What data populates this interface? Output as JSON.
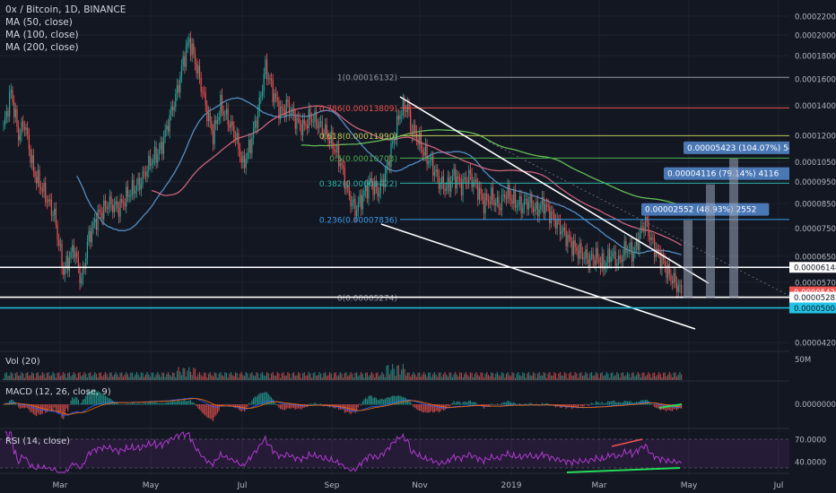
{
  "header": {
    "symbol_line": "0x / Bitcoin, 1D, BINANCE",
    "indicators": [
      "MA (50, close)",
      "MA (100, close)",
      "MA (200, close)"
    ]
  },
  "panes": {
    "volume_label": "Vol (20)",
    "macd_label": "MACD (12, 26, close, 9)",
    "rsi_label": "RSI (14, close)"
  },
  "colors": {
    "background": "#131722",
    "up": "#26a69a",
    "down": "#ef5350",
    "ma50": "#5b9bd5",
    "ma100": "#e06b85",
    "ma200": "#6fcf5b",
    "rsi": "#b03ad0",
    "fib_colors": [
      "#9598a1",
      "#ef5350",
      "#bfcc58",
      "#4caf50",
      "#2bb5a8",
      "#3d9be9",
      "#9598a1"
    ]
  },
  "chart_data": {
    "type": "candlestick",
    "title": "0x / Bitcoin, 1D, BINANCE",
    "x_ticks": [
      "Mar",
      "May",
      "Jul",
      "Sep",
      "Nov",
      "2019",
      "Mar",
      "May",
      "Jul"
    ],
    "y_ticks": [
      "0.00022000",
      "0.00020000",
      "0.00018000",
      "0.00016000",
      "0.00014000",
      "0.00012000",
      "0.00010500",
      "0.00009500",
      "0.00008500",
      "0.00007500",
      "0.00006500",
      "0.00005700",
      "0.00004200"
    ],
    "y_scale": "log",
    "ylim": [
      4e-05,
      0.000232
    ],
    "price_key_points": [
      [
        0,
        0.000125
      ],
      [
        5,
        0.00015
      ],
      [
        10,
        0.00012
      ],
      [
        14,
        0.000128
      ],
      [
        20,
        0.0001
      ],
      [
        27,
        9e-05
      ],
      [
        34,
        8e-05
      ],
      [
        40,
        6e-05
      ],
      [
        47,
        6.8e-05
      ],
      [
        52,
        5.7e-05
      ],
      [
        57,
        7.2e-05
      ],
      [
        63,
        8e-05
      ],
      [
        70,
        8.5e-05
      ],
      [
        77,
        8.3e-05
      ],
      [
        84,
        9e-05
      ],
      [
        91,
        9.4e-05
      ],
      [
        98,
        0.000105
      ],
      [
        105,
        0.000112
      ],
      [
        112,
        0.000135
      ],
      [
        116,
        0.00015
      ],
      [
        120,
        0.000175
      ],
      [
        124,
        0.000195
      ],
      [
        128,
        0.000175
      ],
      [
        132,
        0.000155
      ],
      [
        136,
        0.000135
      ],
      [
        140,
        0.00012
      ],
      [
        145,
        0.00014
      ],
      [
        150,
        0.00013
      ],
      [
        155,
        0.00012
      ],
      [
        160,
        0.000103
      ],
      [
        165,
        0.000115
      ],
      [
        170,
        0.000135
      ],
      [
        175,
        0.00017
      ],
      [
        180,
        0.00015
      ],
      [
        185,
        0.000135
      ],
      [
        190,
        0.00014
      ],
      [
        195,
        0.00013
      ],
      [
        200,
        0.000125
      ],
      [
        205,
        0.000132
      ],
      [
        210,
        0.000128
      ],
      [
        215,
        0.000122
      ],
      [
        220,
        0.000115
      ],
      [
        225,
        0.000105
      ],
      [
        230,
        9e-05
      ],
      [
        235,
        8.2e-05
      ],
      [
        240,
        8.8e-05
      ],
      [
        245,
        9.5e-05
      ],
      [
        250,
        9e-05
      ],
      [
        255,
        9.8e-05
      ],
      [
        260,
        0.000115
      ],
      [
        265,
        0.000135
      ],
      [
        270,
        0.00014
      ],
      [
        272,
        0.000125
      ],
      [
        276,
        0.00012
      ],
      [
        281,
        0.00011
      ],
      [
        286,
        0.000104
      ],
      [
        291,
        9.5e-05
      ],
      [
        296,
        9.2e-05
      ],
      [
        301,
        9.8e-05
      ],
      [
        306,
        9.3e-05
      ],
      [
        311,
        9.8e-05
      ],
      [
        316,
        9.3e-05
      ],
      [
        321,
        8.5e-05
      ],
      [
        326,
        8.8e-05
      ],
      [
        331,
        8.4e-05
      ],
      [
        336,
        9e-05
      ],
      [
        341,
        8.6e-05
      ],
      [
        346,
        8.4e-05
      ],
      [
        351,
        8.6e-05
      ],
      [
        356,
        8.2e-05
      ],
      [
        361,
        8.5e-05
      ],
      [
        366,
        8e-05
      ],
      [
        371,
        7.6e-05
      ],
      [
        376,
        7.2e-05
      ],
      [
        381,
        6.8e-05
      ],
      [
        386,
        6.6e-05
      ],
      [
        391,
        6.4e-05
      ],
      [
        396,
        6.5e-05
      ],
      [
        401,
        6.2e-05
      ],
      [
        406,
        6.6e-05
      ],
      [
        411,
        6.3e-05
      ],
      [
        416,
        6.8e-05
      ],
      [
        421,
        6.6e-05
      ],
      [
        426,
        7.4e-05
      ],
      [
        429,
        7.8e-05
      ],
      [
        433,
        7e-05
      ],
      [
        437,
        6.6e-05
      ],
      [
        441,
        6.3e-05
      ],
      [
        445,
        5.9e-05
      ],
      [
        449,
        5.7e-05
      ],
      [
        453,
        5.4e-05
      ]
    ],
    "fibonacci": [
      {
        "label": "1(0.00016132)",
        "value": 0.00016132
      },
      {
        "label": "0.786(0.00013809)",
        "value": 0.00013809
      },
      {
        "label": "0.618(0.00011990)",
        "value": 0.0001199
      },
      {
        "label": "0.5(0.00010703)",
        "value": 0.00010703
      },
      {
        "label": "0.382(0.00009422)",
        "value": 9.422e-05
      },
      {
        "label": "0.236(0.00007836)",
        "value": 7.836e-05
      },
      {
        "label": "0(0.00005274)",
        "value": 5.274e-05
      }
    ],
    "horizontal_levels": [
      {
        "price": 6.148e-05,
        "label": "0.00006148",
        "style": "white"
      },
      {
        "price": 5.428e-05,
        "label": "0.00005428",
        "style": "red"
      },
      {
        "price": 5.283e-05,
        "label": "0.00005283",
        "style": "white"
      },
      {
        "price": 5.004e-05,
        "label": "0.00005004",
        "style": "cyan"
      }
    ],
    "price_targets": [
      {
        "label": "0.00002552 (48.93%) 2552",
        "from": 5.26e-05,
        "to": 7.81e-05
      },
      {
        "label": "0.00004116 (79.14%) 4116",
        "from": 5.26e-05,
        "to": 9.37e-05
      },
      {
        "label": "0.00005423 (104.07%) 5423",
        "from": 5.26e-05,
        "to": 0.0001068
      }
    ],
    "volume_axis_label": "50M",
    "macd_axis_label": "0.00000000",
    "rsi_axis_labels": [
      "70.0000",
      "40.0000"
    ]
  }
}
